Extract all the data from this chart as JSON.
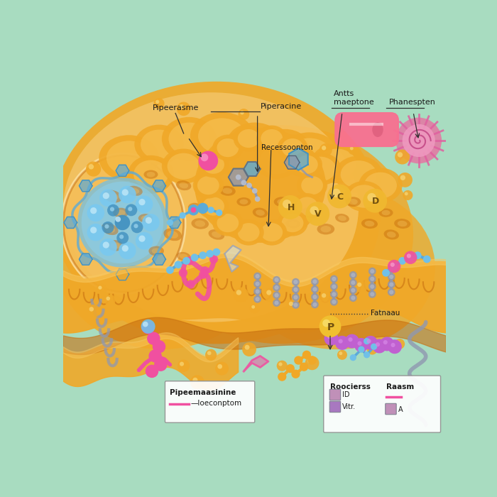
{
  "bg_color": "#a8dcc0",
  "orange_main": "#f0a828",
  "orange_mid": "#e89820",
  "orange_dark": "#c87010",
  "orange_light": "#f8c860",
  "orange_pale": "#fce0a0",
  "blue_cell": "#70c0e8",
  "blue_dark": "#4090c0",
  "blue_mid": "#5aaad8",
  "pink": "#f050a0",
  "pink_light": "#f898c8",
  "pink_drug": "#f87090",
  "gray": "#9098b0",
  "gray_light": "#b8c0d0",
  "purple": "#c060d0",
  "purple_light": "#d888e8",
  "labels": {
    "label1": "Pipeerasme",
    "label2": "Piperacine",
    "label3": "Antts\nmaeptone",
    "label4": "Phanespten",
    "label5": "Recessoonton",
    "fatnaau": "Fatnaau",
    "box1_title": "Pipeemaasinine",
    "box1_sub": "—loeconptom",
    "legend1": "Roocierss",
    "legend2": "Raasm"
  }
}
